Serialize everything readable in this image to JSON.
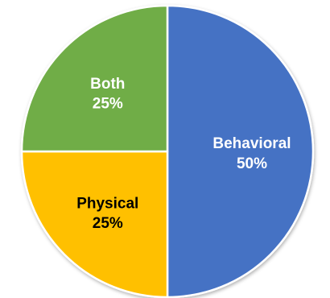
{
  "chart_data": {
    "type": "pie",
    "title": "",
    "slices": [
      {
        "label": "Behavioral",
        "value": 50,
        "value_label": "50%",
        "color": "#4472C4",
        "text_color": "#FFFFFF"
      },
      {
        "label": "Physical",
        "value": 25,
        "value_label": "25%",
        "color": "#FFC000",
        "text_color": "#000000"
      },
      {
        "label": "Both",
        "value": 25,
        "value_label": "25%",
        "color": "#70AD47",
        "text_color": "#FFFFFF"
      }
    ],
    "start_angle": "12 o'clock",
    "direction": "clockwise",
    "slice_border_color": "#FFFFFF",
    "legend": "none"
  }
}
